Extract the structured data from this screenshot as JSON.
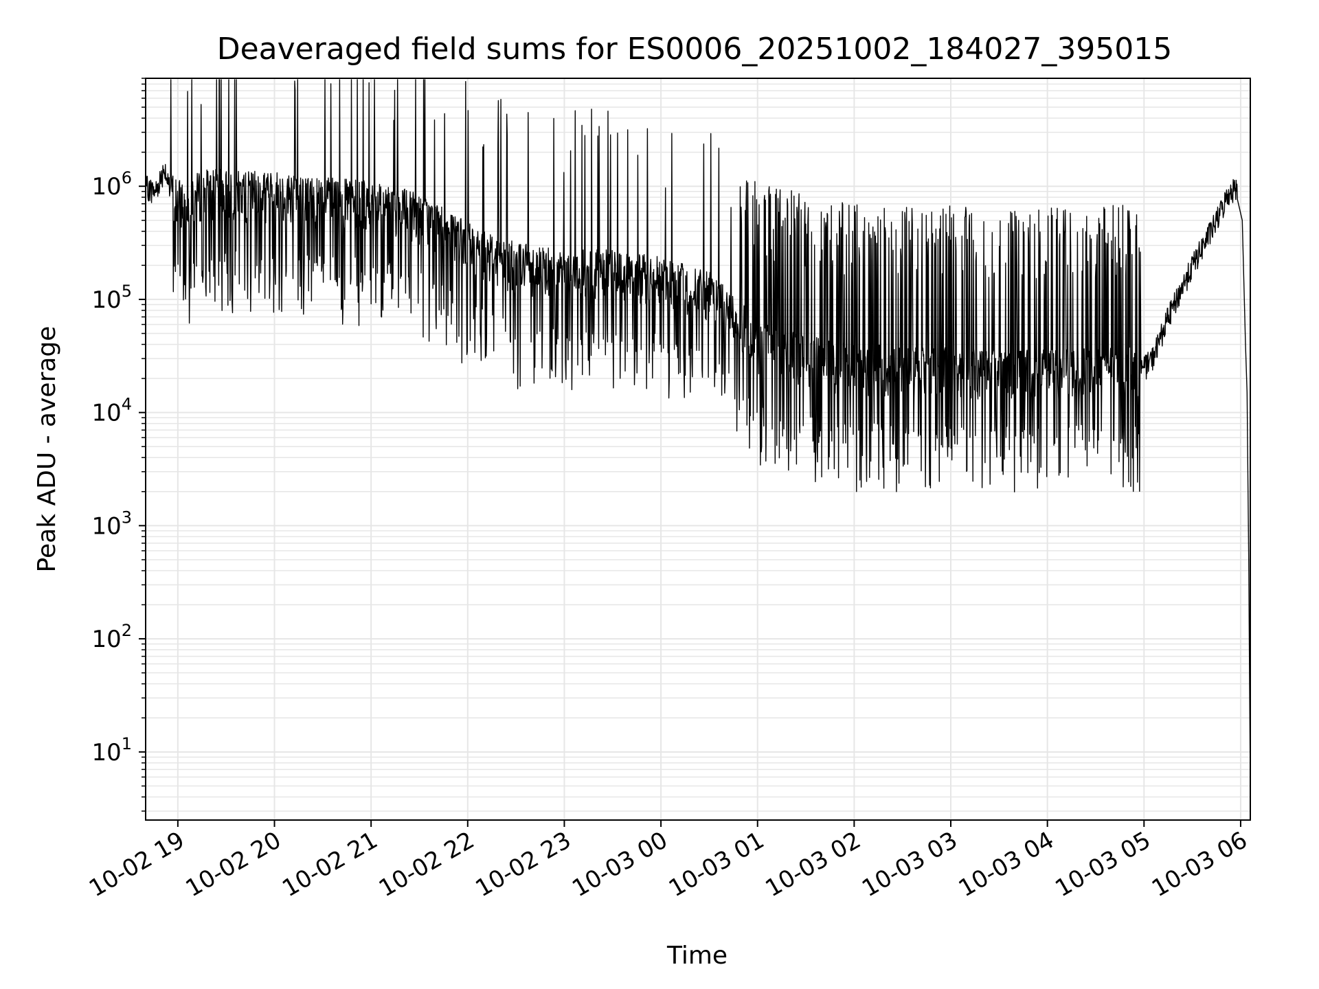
{
  "chart_data": {
    "type": "line",
    "title": "Deaveraged field sums for ES0006_20251002_184027_395015",
    "xlabel": "Time",
    "ylabel": "Peak ADU - average",
    "yscale": "log",
    "ylim": [
      2.5,
      9000000
    ],
    "xlim": [
      "2025-10-02 18:40",
      "2025-10-03 06:06"
    ],
    "grid": true,
    "x_ticks": [
      "10-02 19",
      "10-02 20",
      "10-02 21",
      "10-02 22",
      "10-02 23",
      "10-03 00",
      "10-03 01",
      "10-03 02",
      "10-03 03",
      "10-03 04",
      "10-03 05",
      "10-03 06"
    ],
    "x_tick_times": [
      "2025-10-02 19:00",
      "2025-10-02 20:00",
      "2025-10-02 21:00",
      "2025-10-02 22:00",
      "2025-10-02 23:00",
      "2025-10-03 00:00",
      "2025-10-03 01:00",
      "2025-10-03 02:00",
      "2025-10-03 03:00",
      "2025-10-03 04:00",
      "2025-10-03 05:00",
      "2025-10-03 06:00"
    ],
    "y_ticks": [
      {
        "value": 10,
        "base": "10",
        "exp": "1"
      },
      {
        "value": 100,
        "base": "10",
        "exp": "2"
      },
      {
        "value": 1000,
        "base": "10",
        "exp": "3"
      },
      {
        "value": 10000,
        "base": "10",
        "exp": "4"
      },
      {
        "value": 100000,
        "base": "10",
        "exp": "5"
      },
      {
        "value": 1000000,
        "base": "10",
        "exp": "6"
      }
    ],
    "line_color": "#000000",
    "grid_color": "#e6e6e6",
    "series": [
      {
        "x": [
          "2025-10-02 18:40",
          "2025-10-02 18:46",
          "2025-10-02 18:52",
          "2025-10-02 18:54",
          "2025-10-02 19:00",
          "2025-10-02 19:10",
          "2025-10-02 19:20",
          "2025-10-02 19:40",
          "2025-10-02 20:00",
          "2025-10-02 20:30",
          "2025-10-02 21:00",
          "2025-10-02 21:30",
          "2025-10-02 22:00",
          "2025-10-02 22:30",
          "2025-10-02 23:00",
          "2025-10-02 23:30",
          "2025-10-03 00:00",
          "2025-10-03 00:30",
          "2025-10-03 00:50",
          "2025-10-03 01:00",
          "2025-10-03 01:30",
          "2025-10-03 02:00",
          "2025-10-03 03:00",
          "2025-10-03 04:00",
          "2025-10-03 05:00",
          "2025-10-03 05:05",
          "2025-10-03 05:15",
          "2025-10-03 05:30",
          "2025-10-03 05:45",
          "2025-10-03 05:53",
          "2025-10-03 05:58",
          "2025-10-03 06:01",
          "2025-10-03 06:03",
          "2025-10-03 06:04",
          "2025-10-03 06:05",
          "2025-10-03 06:06"
        ],
        "y": [
          1000000,
          900000,
          1500000,
          1000000,
          700000,
          800000,
          900000,
          850000,
          850000,
          750000,
          700000,
          550000,
          300000,
          200000,
          180000,
          170000,
          150000,
          110000,
          60000,
          40000,
          30000,
          25000,
          24000,
          23000,
          25000,
          30000,
          70000,
          200000,
          500000,
          900000,
          1000000,
          500000,
          40000,
          15000,
          500,
          5
        ]
      }
    ]
  }
}
